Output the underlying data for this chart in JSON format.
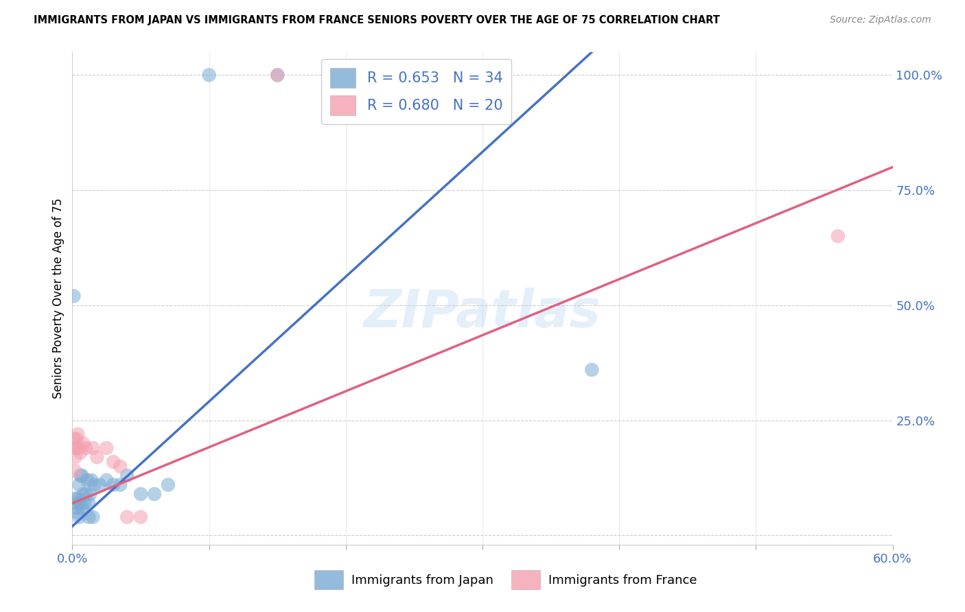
{
  "title": "IMMIGRANTS FROM JAPAN VS IMMIGRANTS FROM FRANCE SENIORS POVERTY OVER THE AGE OF 75 CORRELATION CHART",
  "source": "Source: ZipAtlas.com",
  "ylabel": "Seniors Poverty Over the Age of 75",
  "xlim": [
    0.0,
    0.6
  ],
  "ylim": [
    -0.02,
    1.05
  ],
  "xticks": [
    0.0,
    0.1,
    0.2,
    0.3,
    0.4,
    0.5,
    0.6
  ],
  "xticklabels": [
    "0.0%",
    "",
    "",
    "",
    "",
    "",
    "60.0%"
  ],
  "yticks": [
    0.0,
    0.25,
    0.5,
    0.75,
    1.0
  ],
  "yticklabels": [
    "",
    "25.0%",
    "50.0%",
    "75.0%",
    "100.0%"
  ],
  "watermark": "ZIPatlas",
  "legend_japan_r": "R = 0.653",
  "legend_japan_n": "N = 34",
  "legend_france_r": "R = 0.680",
  "legend_france_n": "N = 20",
  "japan_color": "#7BAAD4",
  "france_color": "#F4A0B0",
  "japan_line_color": "#4472C4",
  "france_line_color": "#E06080",
  "japan_scatter": [
    [
      0.001,
      0.52
    ],
    [
      0.002,
      0.08
    ],
    [
      0.003,
      0.06
    ],
    [
      0.003,
      0.07
    ],
    [
      0.004,
      0.05
    ],
    [
      0.004,
      0.08
    ],
    [
      0.005,
      0.04
    ],
    [
      0.005,
      0.11
    ],
    [
      0.006,
      0.13
    ],
    [
      0.006,
      0.07
    ],
    [
      0.007,
      0.06
    ],
    [
      0.007,
      0.13
    ],
    [
      0.008,
      0.09
    ],
    [
      0.009,
      0.07
    ],
    [
      0.01,
      0.09
    ],
    [
      0.011,
      0.12
    ],
    [
      0.012,
      0.04
    ],
    [
      0.012,
      0.07
    ],
    [
      0.013,
      0.09
    ],
    [
      0.014,
      0.12
    ],
    [
      0.015,
      0.04
    ],
    [
      0.016,
      0.11
    ],
    [
      0.02,
      0.11
    ],
    [
      0.025,
      0.12
    ],
    [
      0.03,
      0.11
    ],
    [
      0.035,
      0.11
    ],
    [
      0.04,
      0.13
    ],
    [
      0.05,
      0.09
    ],
    [
      0.06,
      0.09
    ],
    [
      0.07,
      0.11
    ],
    [
      0.1,
      1.0
    ],
    [
      0.15,
      1.0
    ],
    [
      0.29,
      1.0
    ],
    [
      0.38,
      0.36
    ]
  ],
  "france_scatter": [
    [
      0.001,
      0.19
    ],
    [
      0.001,
      0.21
    ],
    [
      0.002,
      0.14
    ],
    [
      0.002,
      0.17
    ],
    [
      0.003,
      0.19
    ],
    [
      0.003,
      0.21
    ],
    [
      0.004,
      0.22
    ],
    [
      0.005,
      0.19
    ],
    [
      0.006,
      0.18
    ],
    [
      0.008,
      0.2
    ],
    [
      0.01,
      0.19
    ],
    [
      0.015,
      0.19
    ],
    [
      0.018,
      0.17
    ],
    [
      0.025,
      0.19
    ],
    [
      0.03,
      0.16
    ],
    [
      0.035,
      0.15
    ],
    [
      0.04,
      0.04
    ],
    [
      0.05,
      0.04
    ],
    [
      0.15,
      1.0
    ],
    [
      0.56,
      0.65
    ]
  ],
  "japan_trend_x": [
    0.0,
    0.38
  ],
  "japan_trend_y": [
    0.02,
    1.05
  ],
  "france_trend_x": [
    0.0,
    0.6
  ],
  "france_trend_y": [
    0.07,
    0.8
  ]
}
